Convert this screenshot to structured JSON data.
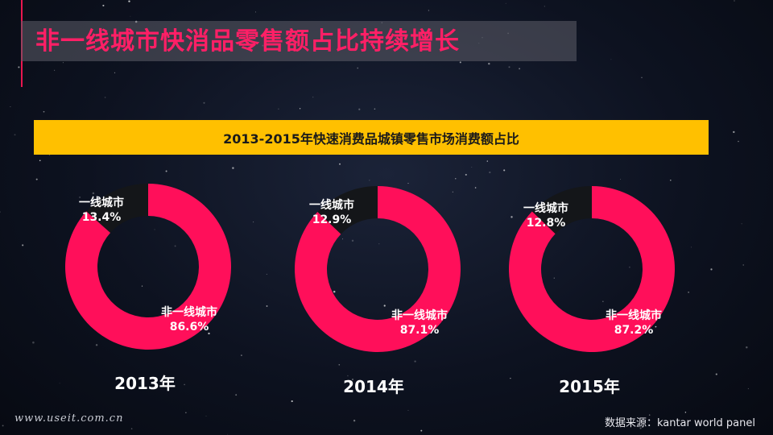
{
  "slide": {
    "title": "非一线城市快消品零售额占比持续增长",
    "subtitle": "2013-2015年快速消费品城镇零售市场消费额占比",
    "watermark": "www.useit.com.cn",
    "source": "数据来源：kantar world panel"
  },
  "colors": {
    "title": "#ff1f66",
    "subtitle_bg": "#ffc000",
    "non_tier1": "#ff0f5a",
    "tier1": "#141619"
  },
  "chart_data": [
    {
      "type": "pie",
      "title": "2013年",
      "labels": [
        "一线城市",
        "非一线城市"
      ],
      "values": [
        13.4,
        86.6
      ],
      "value_labels": [
        "13.4%",
        "86.6%"
      ],
      "donut": true
    },
    {
      "type": "pie",
      "title": "2014年",
      "labels": [
        "一线城市",
        "非一线城市"
      ],
      "values": [
        12.9,
        87.1
      ],
      "value_labels": [
        "12.9%",
        "87.1%"
      ],
      "donut": true
    },
    {
      "type": "pie",
      "title": "2015年",
      "labels": [
        "一线城市",
        "非一线城市"
      ],
      "values": [
        12.8,
        87.2
      ],
      "value_labels": [
        "12.8%",
        "87.2%"
      ],
      "donut": true
    }
  ]
}
